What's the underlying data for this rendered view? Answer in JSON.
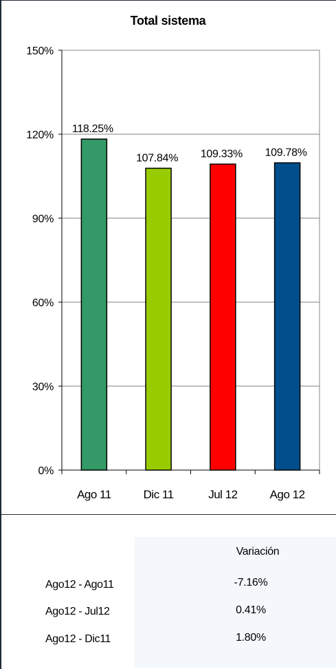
{
  "chart_data": {
    "type": "bar",
    "title": "Total sistema",
    "categories": [
      "Ago 11",
      "Dic 11",
      "Jul 12",
      "Ago 12"
    ],
    "values": [
      118.25,
      107.84,
      109.33,
      109.78
    ],
    "data_labels": [
      "118.25%",
      "107.84%",
      "109.33%",
      "109.78%"
    ],
    "bar_colors": [
      "#339966",
      "#99cc00",
      "#ff0000",
      "#004f8c"
    ],
    "ylim": [
      0,
      150
    ],
    "yticks": [
      0,
      30,
      60,
      90,
      120,
      150
    ],
    "ytick_labels": [
      "0%",
      "30%",
      "60%",
      "90%",
      "120%",
      "150%"
    ],
    "grid": true,
    "xlabel": "",
    "ylabel": ""
  },
  "table": {
    "header": "Variación",
    "rows": [
      {
        "label": "Ago12 - Ago11",
        "value": "-7.16%"
      },
      {
        "label": "Ago12 - Jul12",
        "value": "0.41%"
      },
      {
        "label": "Ago12 - Dic11",
        "value": "1.80%"
      }
    ]
  }
}
